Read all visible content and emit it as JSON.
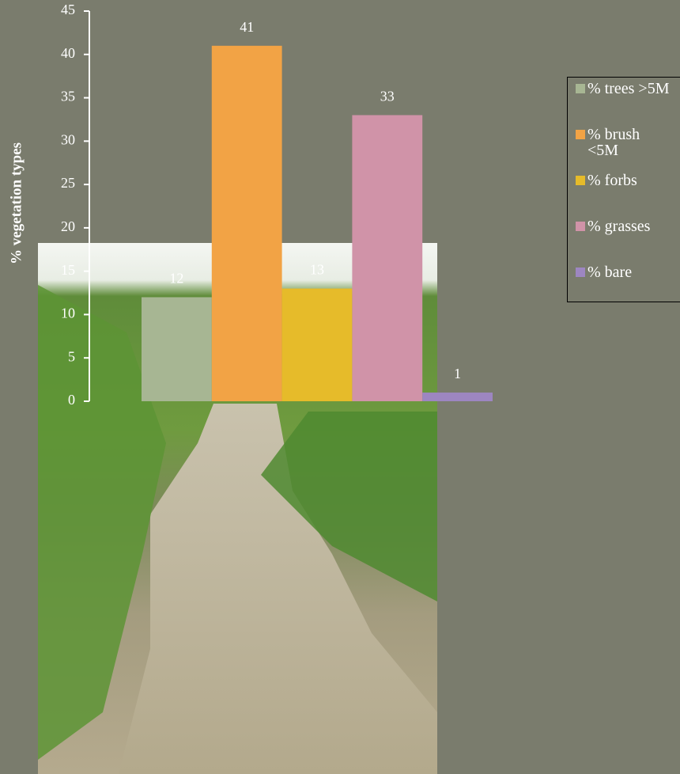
{
  "chart_data": {
    "type": "bar",
    "y_label": "% vegetation types",
    "series": [
      {
        "name": "% trees >5M",
        "color": "#a7b693",
        "values": [
          12
        ]
      },
      {
        "name": "% brush <5M",
        "color": "#f2a345",
        "values": [
          41
        ]
      },
      {
        "name": "% forbs",
        "color": "#e6bb2a",
        "values": [
          13
        ]
      },
      {
        "name": "% grasses",
        "color": "#d093a8",
        "values": [
          33
        ]
      },
      {
        "name": "% bare",
        "color": "#9d86c1",
        "values": [
          1
        ]
      }
    ],
    "ylim": [
      0,
      45
    ],
    "yticks": [
      0,
      5,
      10,
      15,
      20,
      25,
      30,
      35,
      40,
      45
    ],
    "legend": "right"
  }
}
